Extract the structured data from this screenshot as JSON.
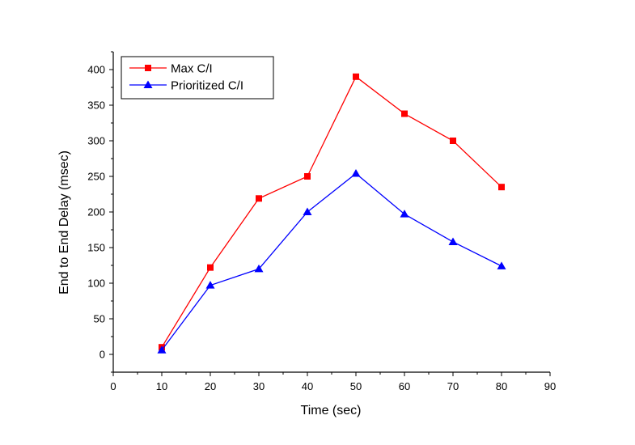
{
  "chart_data": {
    "type": "line",
    "title": "",
    "xlabel": "Time (sec)",
    "ylabel": "End to End Delay (msec)",
    "xlim": [
      0,
      90
    ],
    "ylim": [
      -25,
      425
    ],
    "x_ticks": [
      0,
      10,
      20,
      30,
      40,
      50,
      60,
      70,
      80,
      90
    ],
    "y_ticks": [
      0,
      50,
      100,
      150,
      200,
      250,
      300,
      350,
      400
    ],
    "grid": false,
    "legend_position": "top-left",
    "x": [
      10,
      20,
      30,
      40,
      50,
      60,
      70,
      80
    ],
    "series": [
      {
        "name": "Max C/I",
        "color": "#ff0000",
        "marker": "square",
        "values": [
          10,
          122,
          219,
          250,
          390,
          338,
          300,
          235
        ]
      },
      {
        "name": "Prioritized C/I",
        "color": "#0000ff",
        "marker": "triangle",
        "values": [
          6,
          97,
          120,
          200,
          254,
          197,
          158,
          124
        ]
      }
    ]
  }
}
